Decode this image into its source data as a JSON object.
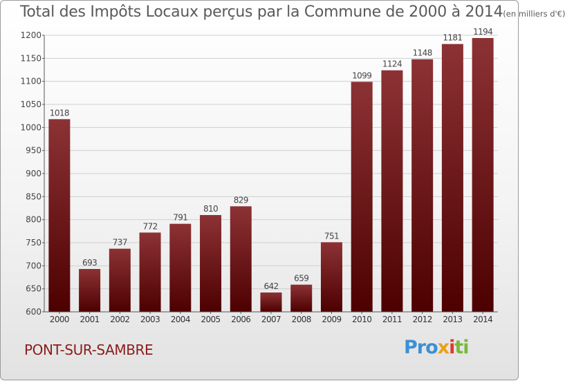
{
  "title": "Total des Impôts Locaux perçus par la Commune de 2000 à 2014",
  "title_unit": "(en milliers d'€)",
  "commune": "PONT-SUR-SAMBRE",
  "logo": {
    "part1": "Pro",
    "part2": "x",
    "part3": "i",
    "part4": "ti"
  },
  "colors": {
    "bar_top": "#8c3235",
    "bar_bottom": "#4d0000",
    "text": "#5a5a5a",
    "commune": "#8b1c1c"
  },
  "chart_data": {
    "type": "bar",
    "title": "Total des Impôts Locaux perçus par la Commune de 2000 à 2014 (en milliers d'€)",
    "xlabel": "",
    "ylabel": "",
    "categories": [
      "2000",
      "2001",
      "2002",
      "2003",
      "2004",
      "2005",
      "2006",
      "2007",
      "2008",
      "2009",
      "2010",
      "2011",
      "2012",
      "2013",
      "2014"
    ],
    "values": [
      1018,
      693,
      737,
      772,
      791,
      810,
      829,
      642,
      659,
      751,
      1099,
      1124,
      1148,
      1181,
      1194
    ],
    "ylim": [
      600,
      1200
    ],
    "yticks": [
      600,
      650,
      700,
      750,
      800,
      850,
      900,
      950,
      1000,
      1050,
      1100,
      1150,
      1200
    ],
    "grid": true
  }
}
